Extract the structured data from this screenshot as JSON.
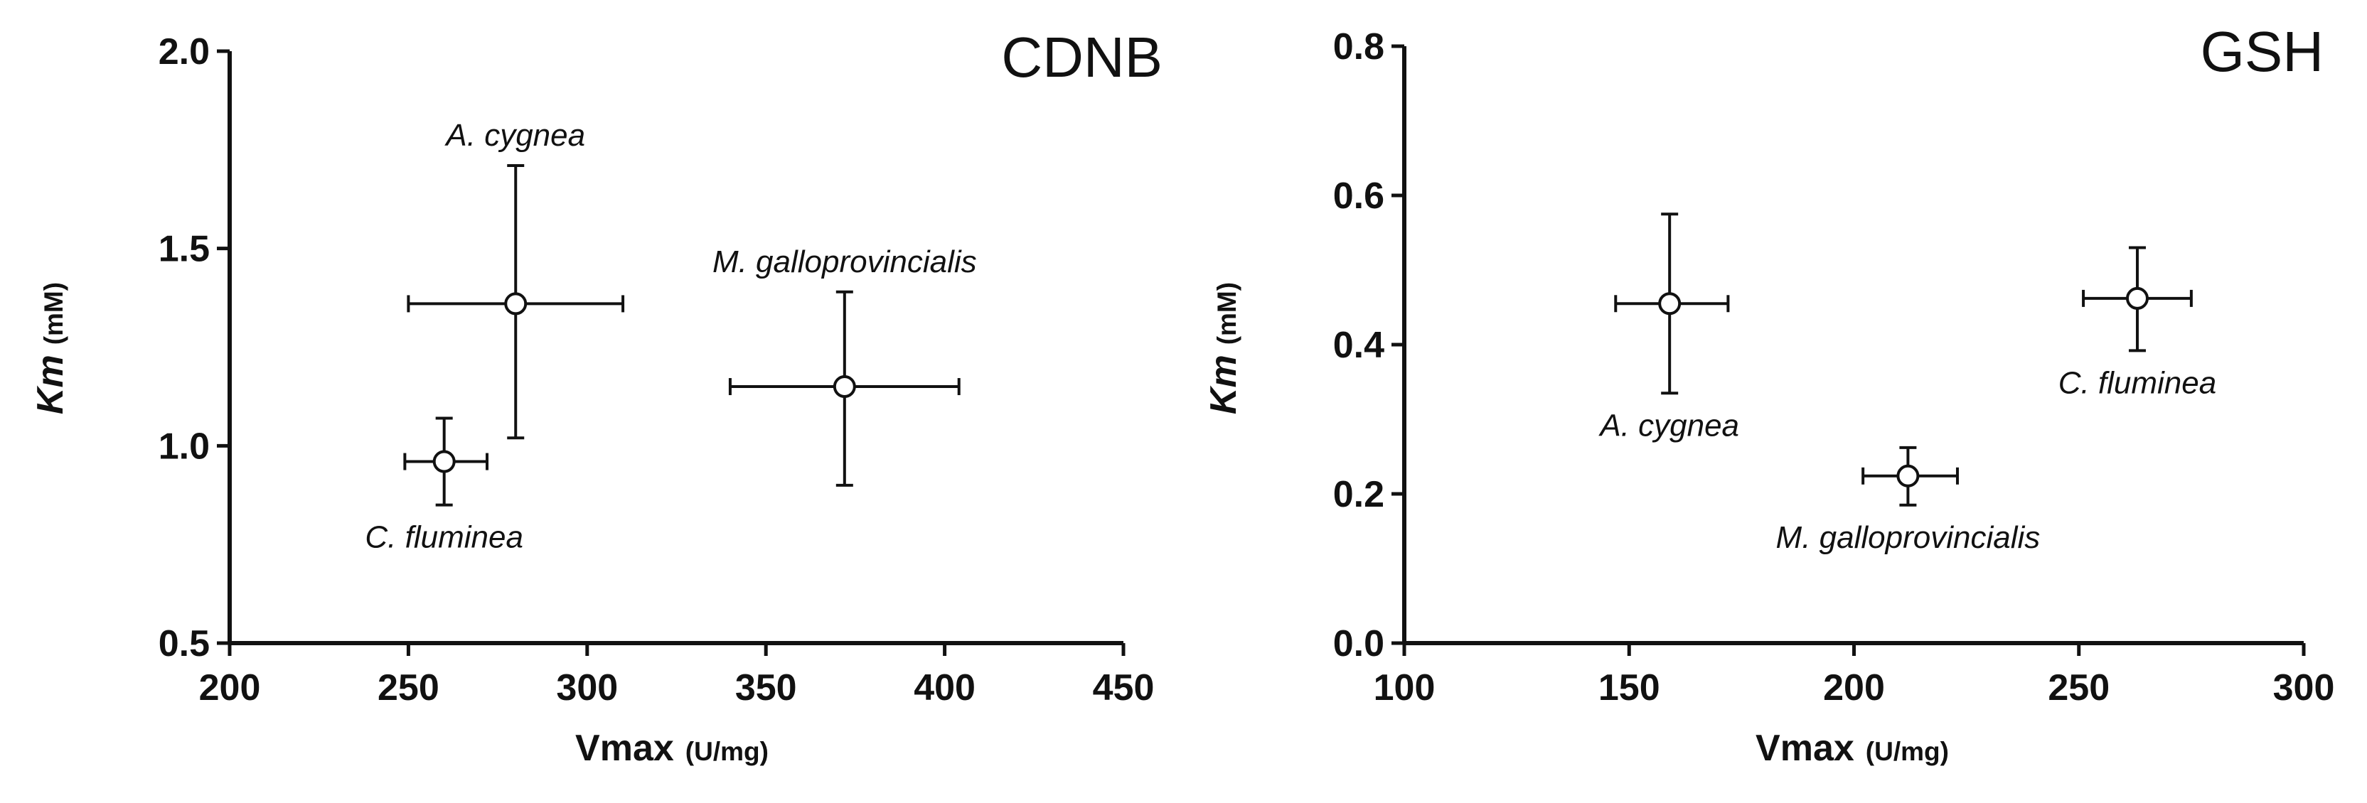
{
  "chart_data": [
    {
      "type": "scatter",
      "title": "CDNB",
      "xlabel": "Vmax",
      "xlabel_unit": "(U/mg)",
      "ylabel": "Km",
      "ylabel_unit": "(mM)",
      "xlim": [
        200,
        450
      ],
      "ylim": [
        0.5,
        2.0
      ],
      "xticks": [
        200,
        250,
        300,
        350,
        400,
        450
      ],
      "xtick_labels": [
        "200",
        "250",
        "300",
        "350",
        "400",
        "450"
      ],
      "yticks": [
        0.5,
        1.0,
        1.5,
        2.0
      ],
      "ytick_labels": [
        "0.5",
        "1.0",
        "1.5",
        "2.0"
      ],
      "grid": false,
      "points": [
        {
          "label": "A. cygnea",
          "x": 280,
          "y": 1.36,
          "x_err_low": 250,
          "x_err_high": 310,
          "y_err_low": 1.02,
          "y_err_high": 1.71,
          "label_pos": "above"
        },
        {
          "label": "M. galloprovincialis",
          "x": 372,
          "y": 1.15,
          "x_err_low": 340,
          "x_err_high": 404,
          "y_err_low": 0.9,
          "y_err_high": 1.39,
          "label_pos": "above"
        },
        {
          "label": "C. fluminea",
          "x": 260,
          "y": 0.96,
          "x_err_low": 249,
          "x_err_high": 272,
          "y_err_low": 0.85,
          "y_err_high": 1.07,
          "label_pos": "below"
        }
      ]
    },
    {
      "type": "scatter",
      "title": "GSH",
      "xlabel": "Vmax",
      "xlabel_unit": "(U/mg)",
      "ylabel": "Km",
      "ylabel_unit": "(mM)",
      "xlim": [
        100,
        300
      ],
      "ylim": [
        0.0,
        0.8
      ],
      "xticks": [
        100,
        150,
        200,
        250,
        300
      ],
      "xtick_labels": [
        "100",
        "150",
        "200",
        "250",
        "300"
      ],
      "yticks": [
        0.0,
        0.2,
        0.4,
        0.6,
        0.8
      ],
      "ytick_labels": [
        "0.0",
        "0.2",
        "0.4",
        "0.6",
        "0.8"
      ],
      "grid": false,
      "points": [
        {
          "label": "A. cygnea",
          "x": 159,
          "y": 0.455,
          "x_err_low": 147,
          "x_err_high": 172,
          "y_err_low": 0.335,
          "y_err_high": 0.575,
          "label_pos": "below"
        },
        {
          "label": "M. galloprovincialis",
          "x": 212,
          "y": 0.224,
          "x_err_low": 202,
          "x_err_high": 223,
          "y_err_low": 0.185,
          "y_err_high": 0.262,
          "label_pos": "below"
        },
        {
          "label": "C. fluminea",
          "x": 263,
          "y": 0.462,
          "x_err_low": 251,
          "x_err_high": 275,
          "y_err_low": 0.392,
          "y_err_high": 0.53,
          "label_pos": "below"
        }
      ]
    }
  ]
}
